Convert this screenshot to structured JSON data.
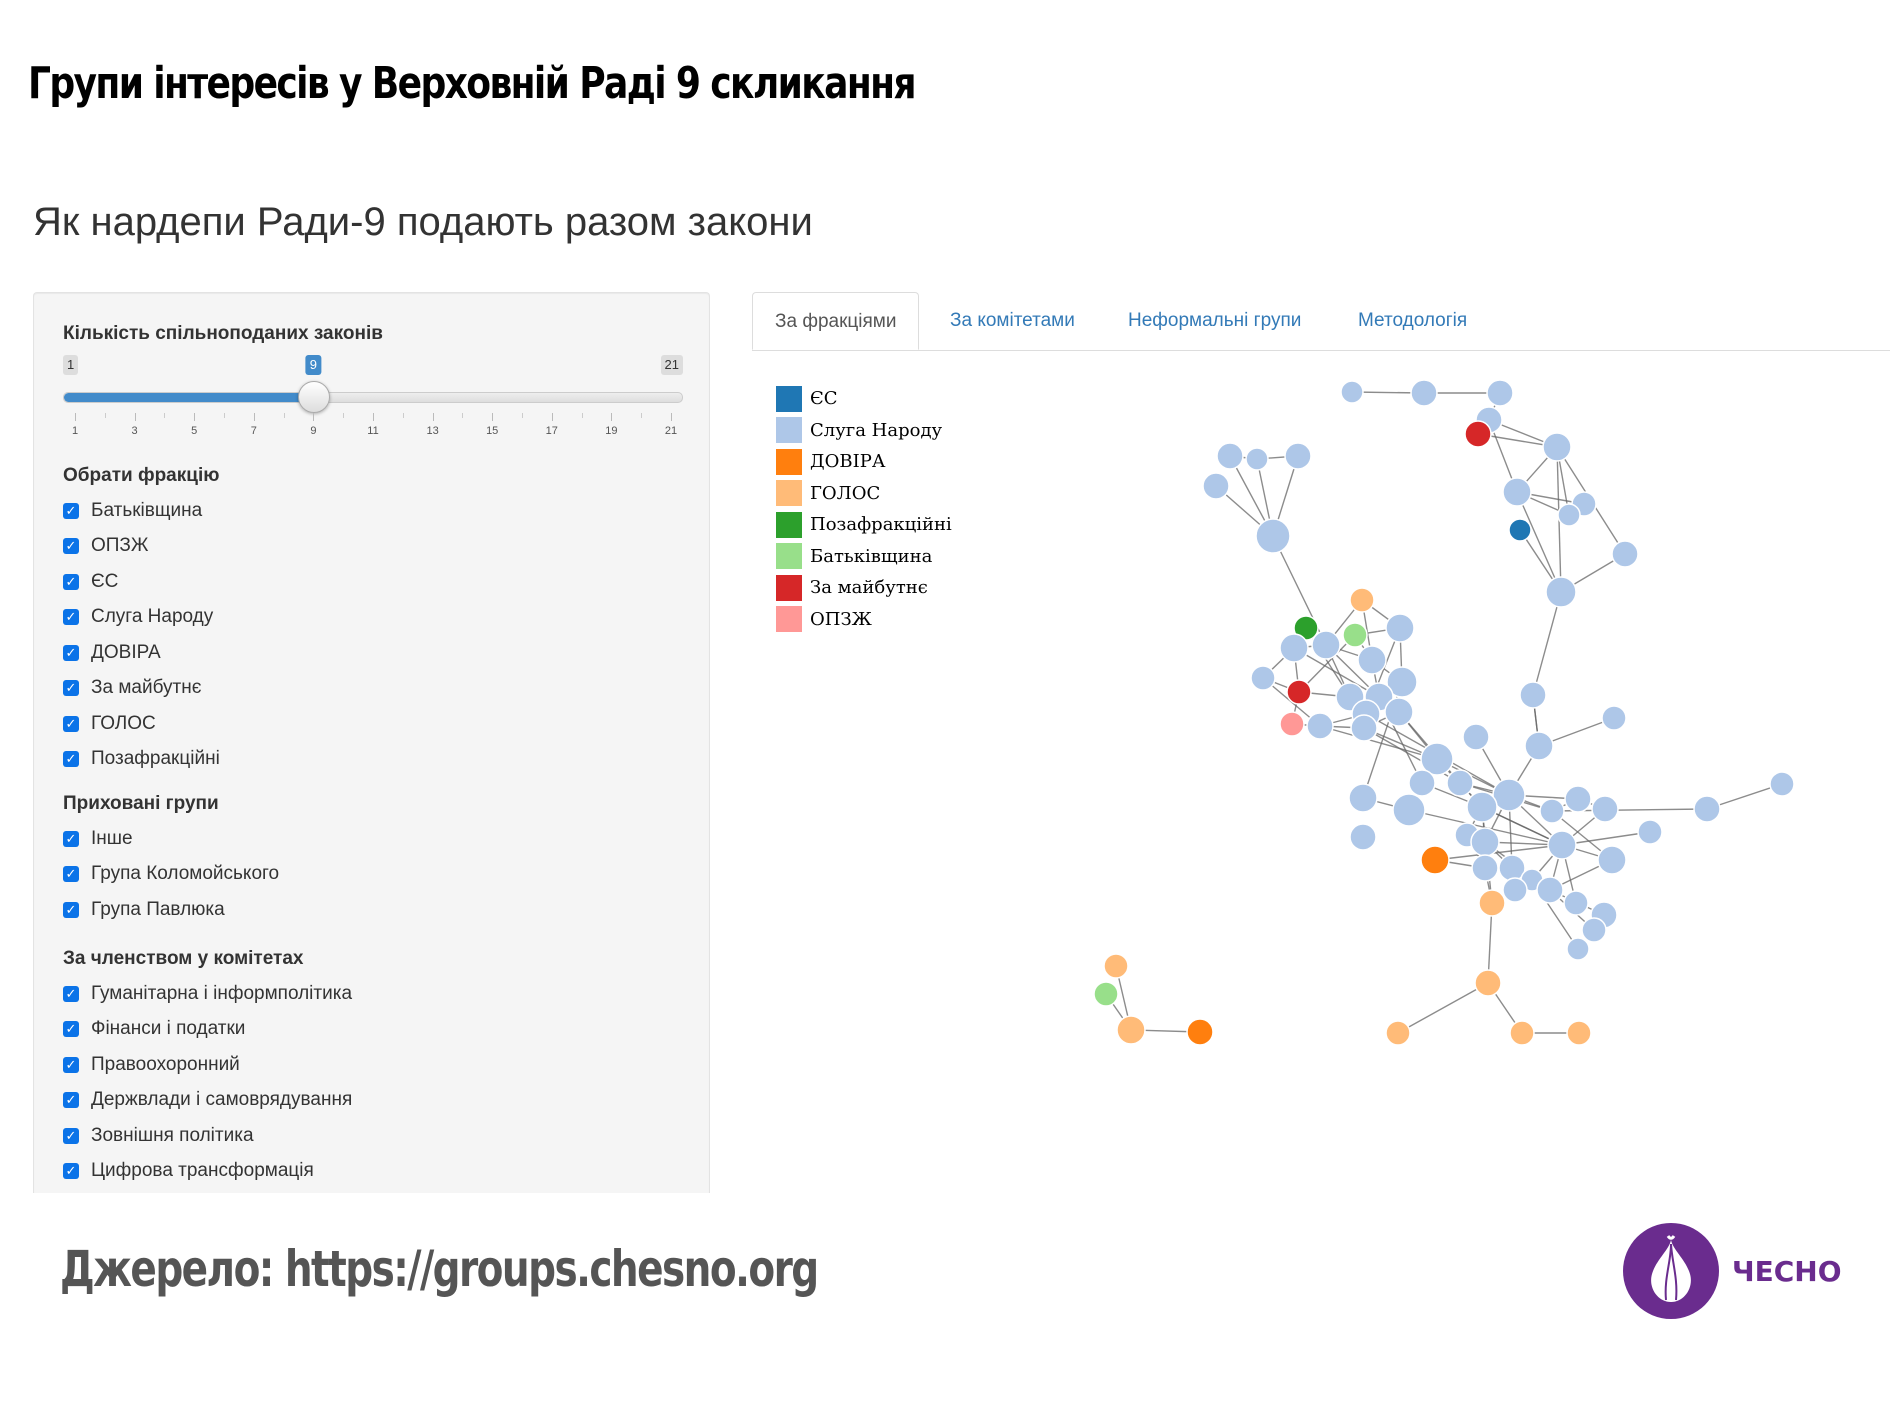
{
  "slide": {
    "headline": "Групи інтересів у Верховній Раді 9 скликання",
    "source": "Джерело: https://groups.chesno.org",
    "logo_text": "ЧЕСНО"
  },
  "app": {
    "title": "Як нардепи Ради-9 подають разом закони"
  },
  "sidebar": {
    "slider": {
      "label": "Кількість спільноподаних законів",
      "min": 1,
      "max": 21,
      "value": 9,
      "min_label": "1",
      "max_label": "21",
      "value_label": "9",
      "ticks": [
        "1",
        "3",
        "5",
        "7",
        "9",
        "11",
        "13",
        "15",
        "17",
        "19",
        "21"
      ]
    },
    "factions": {
      "label": "Обрати фракцію",
      "items": [
        {
          "label": "Батьківщина",
          "checked": true
        },
        {
          "label": "ОПЗЖ",
          "checked": true
        },
        {
          "label": "ЄС",
          "checked": true
        },
        {
          "label": "Слуга Народу",
          "checked": true
        },
        {
          "label": "ДОВІРА",
          "checked": true
        },
        {
          "label": "За майбутнє",
          "checked": true
        },
        {
          "label": "ГОЛОС",
          "checked": true
        },
        {
          "label": "Позафракційні",
          "checked": true
        }
      ]
    },
    "hidden_groups": {
      "label": "Приховані групи",
      "items": [
        {
          "label": "Інше",
          "checked": true
        },
        {
          "label": "Група Коломойського",
          "checked": true
        },
        {
          "label": "Група Павлюка",
          "checked": true
        }
      ]
    },
    "committees": {
      "label": "За членством у комітетах",
      "items": [
        {
          "label": "Гуманітарна і інформполітика",
          "checked": true
        },
        {
          "label": "Фінанси і податки",
          "checked": true
        },
        {
          "label": "Правоохоронний",
          "checked": true
        },
        {
          "label": "Держвлади і самоврядування",
          "checked": true
        },
        {
          "label": "Зовнішня політика",
          "checked": true
        },
        {
          "label": "Цифрова трансформація",
          "checked": true
        }
      ]
    }
  },
  "tabs": [
    {
      "label": "За фракціями",
      "active": true
    },
    {
      "label": "За комітетами",
      "active": false
    },
    {
      "label": "Неформальні групи",
      "active": false
    },
    {
      "label": "Методологія",
      "active": false
    }
  ],
  "legend": [
    {
      "label": "ЄС",
      "color": "#1f77b4"
    },
    {
      "label": "Слуга Народу",
      "color": "#aec7e8"
    },
    {
      "label": "ДОВІРА",
      "color": "#ff7f0e"
    },
    {
      "label": "ГОЛОС",
      "color": "#ffbb78"
    },
    {
      "label": "Позафракційні",
      "color": "#2ca02c"
    },
    {
      "label": "Батьківщина",
      "color": "#98df8a"
    },
    {
      "label": "За майбутнє",
      "color": "#d62728"
    },
    {
      "label": "ОПЗЖ",
      "color": "#ff9896"
    }
  ],
  "icons": {
    "checkbox_check": "check-icon",
    "logo": "garlic-icon"
  }
}
